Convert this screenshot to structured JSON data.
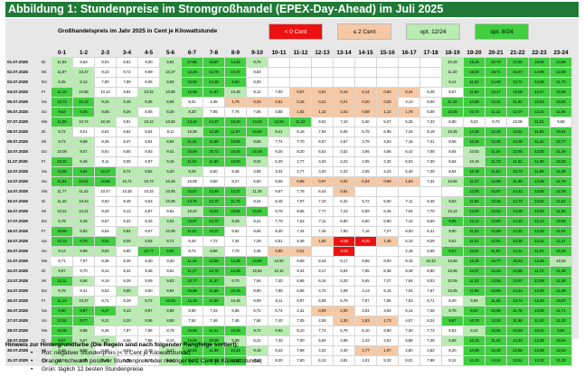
{
  "title": "Abbildung 1: Stundenpreise im Stromgroßhandel (EPEX-Day-Ahead) im Juli 2025",
  "subtitle": "Großhandelspreis im Jahr 2025 in Cent je Kilowattstunde",
  "legend": [
    {
      "label": "< 0 Cent",
      "bg": "#ee1111",
      "fg": "#ffffff"
    },
    {
      "label": "≤ 2 Cent",
      "bg": "#f6c8a4",
      "fg": "#000000"
    },
    {
      "label": "opt. 12/24",
      "bg": "#b8ecb0",
      "fg": "#000000"
    },
    {
      "label": "opt. 8/24",
      "bg": "#3fcf3f",
      "fg": "#000000"
    }
  ],
  "hours": [
    "0-1",
    "1-2",
    "2-3",
    "3-4",
    "4-5",
    "5-6",
    "6-7",
    "7-8",
    "8-9",
    "9-10",
    "10-11",
    "11-12",
    "12-13",
    "13-14",
    "14-15",
    "15-16",
    "16-17",
    "17-18",
    "18-19",
    "19-20",
    "20-21",
    "21-22",
    "22-23",
    "23-24"
  ],
  "rows": [
    {
      "date": "01.07.2025",
      "wd": "Di",
      "v": [
        "11,94",
        "9,63",
        "8,91",
        "8,81",
        "9,00",
        "9,81",
        "17,66",
        "19,87",
        "14,49",
        "9,75",
        "",
        "",
        "",
        "",
        "",
        "",
        "",
        "",
        "10,25",
        "15,29",
        "22,73",
        "17,62",
        "19,06",
        "14,96"
      ]
    },
    {
      "date": "02.07.2025",
      "wd": "Mi",
      "v": [
        "11,97",
        "10,27",
        "9,23",
        "9,72",
        "9,99",
        "10,37",
        "12,49",
        "14,78",
        "14,37",
        "9,83",
        "",
        "",
        "",
        "",
        "",
        "",
        "",
        "",
        "11,30",
        "16,02",
        "19,71",
        "16,67",
        "14,86",
        "12,93"
      ]
    },
    {
      "date": "03.07.2025",
      "wd": "Do",
      "v": [
        "8,35",
        "8,12",
        "7,90",
        "7,89",
        "8,05",
        "8,65",
        "10,56",
        "14,35",
        "9,60",
        "8,00",
        "",
        "",
        "",
        "",
        "",
        "",
        "",
        "",
        "9,14",
        "11,32",
        "14,98",
        "12,71",
        "13,98",
        "11,70"
      ]
    },
    {
      "date": "04.07.2025",
      "wd": "Fr",
      "v": [
        "11,10",
        "10,55",
        "10,13",
        "9,84",
        "10,32",
        "10,80",
        "12,96",
        "11,97",
        "10,48",
        "9,12",
        "7,00",
        "0,67",
        "0,01",
        "0,16",
        "0,14",
        "0,60",
        "0,24",
        "6,28",
        "8,87",
        "11,60",
        "13,47",
        "15,08",
        "12,67",
        "10,85"
      ]
    },
    {
      "date": "05.07.2025",
      "wd": "Sa",
      "v": [
        "10,73",
        "10,15",
        "9,34",
        "9,45",
        "9,35",
        "8,65",
        "8,31",
        "4,38",
        "1,79",
        "0,33",
        "0,01",
        "0,15",
        "0,21",
        "0,21",
        "0,20",
        "0,20",
        "4,13",
        "8,50",
        "11,10",
        "14,08",
        "13,31",
        "11,92",
        "10,83",
        "10,82"
      ]
    },
    {
      "date": "06.07.2025",
      "wd": "So",
      "v": [
        "9,62",
        "9,05",
        "8,58",
        "8,39",
        "8,05",
        "8,26",
        "8,20",
        "7,85",
        "7,76",
        "7,06",
        "3,88",
        "1,92",
        "1,32",
        "1,03",
        "0,58",
        "1,12",
        "1,76",
        "5,08",
        "10,05",
        "10,74",
        "11,12",
        "12,07",
        "12,24",
        "11,84"
      ]
    },
    {
      "date": "07.07.2025",
      "wd": "Mo",
      "v": [
        "11,08",
        "10,74",
        "10,19",
        "9,91",
        "10,12",
        "10,82",
        "13,42",
        "14,37",
        "16,20",
        "13,20",
        "12,50",
        "11,32",
        "9,02",
        "7,10",
        "5,30",
        "5,07",
        "5,25",
        "7,23",
        "8,80",
        "9,23",
        "9,73",
        "10,06",
        "11,01",
        "9,58"
      ]
    },
    {
      "date": "08.07.2025",
      "wd": "Di",
      "v": [
        "9,72",
        "9,01",
        "8,61",
        "8,64",
        "8,54",
        "9,11",
        "10,08",
        "12,36",
        "11,87",
        "10,92",
        "9,41",
        "8,18",
        "7,94",
        "6,06",
        "5,79",
        "6,98",
        "7,34",
        "8,19",
        "10,35",
        "14,25",
        "12,29",
        "12,51",
        "11,85",
        "10,81"
      ]
    },
    {
      "date": "09.07.2025",
      "wd": "Mi",
      "v": [
        "9,72",
        "8,69",
        "8,39",
        "8,47",
        "8,51",
        "8,84",
        "11,31",
        "11,56",
        "10,65",
        "8,66",
        "7,74",
        "7,70",
        "6,57",
        "4,67",
        "3,78",
        "4,63",
        "7,15",
        "7,41",
        "8,56",
        "10,36",
        "12,30",
        "12,35",
        "11,42",
        "10,77"
      ]
    },
    {
      "date": "10.07.2025",
      "wd": "Do",
      "v": [
        "10,09",
        "9,57",
        "8,91",
        "8,85",
        "8,93",
        "9,41",
        "10,69",
        "16,72",
        "16,04",
        "10,49",
        "9,26",
        "8,20",
        "6,53",
        "4,52",
        "3,95",
        "4,56",
        "6,42",
        "7,08",
        "8,64",
        "10,02",
        "11,44",
        "12,66",
        "12,92",
        "11,29"
      ]
    },
    {
      "date": "11.07.2025",
      "wd": "Fr",
      "v": [
        "10,40",
        "9,48",
        "9,11",
        "9,08",
        "8,97",
        "9,15",
        "11,04",
        "11,60",
        "15,00",
        "9,34",
        "5,20",
        "2,77",
        "3,20",
        "2,22",
        "2,05",
        "2,32",
        "6,02",
        "7,30",
        "8,64",
        "10,19",
        "11,73",
        "11,61",
        "11,36",
        "10,45"
      ]
    },
    {
      "date": "12.07.2025",
      "wd": "Sa",
      "v": [
        "10,66",
        "9,84",
        "10,27",
        "9,74",
        "9,52",
        "9,20",
        "9,25",
        "8,50",
        "5,46",
        "3,08",
        "3,44",
        "2,77",
        "3,20",
        "2,22",
        "2,05",
        "4,23",
        "5,40",
        "7,30",
        "8,64",
        "10,19",
        "11,63",
        "10,73",
        "11,86",
        "11,09"
      ]
    },
    {
      "date": "13.07.2025",
      "wd": "So",
      "v": [
        "11,54",
        "10,91",
        "10,84",
        "10,71",
        "10,74",
        "10,46",
        "10,09",
        "9,50",
        "8,27",
        "6,60",
        "5,56",
        "0,98",
        "0,07",
        "0,02",
        "0,34",
        "0,59",
        "1,93",
        "7,34",
        "10,56",
        "11,37",
        "12,08",
        "11,99",
        "13,06",
        "11,76"
      ]
    },
    {
      "date": "14.07.2025",
      "wd": "Mo",
      "v": [
        "11,77",
        "11,43",
        "10,47",
        "10,38",
        "10,32",
        "10,65",
        "12,57",
        "13,49",
        "13,27",
        "11,35",
        "9,57",
        "7,76",
        "6,43",
        "0,61",
        "",
        "",
        "",
        "",
        "",
        "12,00",
        "12,97",
        "14,42",
        "13,65",
        "12,38"
      ]
    },
    {
      "date": "15.07.2025",
      "wd": "Di",
      "v": [
        "11,40",
        "10,44",
        "9,62",
        "9,49",
        "9,53",
        "10,06",
        "13,75",
        "13,70",
        "11,75",
        "9,24",
        "8,46",
        "7,97",
        "7,10",
        "6,42",
        "5,72",
        "5,50",
        "7,11",
        "8,46",
        "9,83",
        "11,65",
        "13,48",
        "14,73",
        "13,64",
        "11,52"
      ]
    },
    {
      "date": "16.07.2025",
      "wd": "Mi",
      "v": [
        "10,31",
        "10,21",
        "9,29",
        "9,13",
        "8,87",
        "9,61",
        "10,20",
        "10,91",
        "10,56",
        "10,81",
        "9,79",
        "8,56",
        "7,77",
        "7,23",
        "5,69",
        "6,26",
        "7,04",
        "7,70",
        "10,12",
        "12,00",
        "13,62",
        "14,06",
        "12,50",
        "11,50"
      ]
    },
    {
      "date": "17.07.2025",
      "wd": "Do",
      "v": [
        "9,78",
        "9,46",
        "8,67",
        "8,34",
        "8,43",
        "9,04",
        "10,87",
        "13,70",
        "9,49",
        "8,41",
        "7,79",
        "7,52",
        "7,11",
        "6,80",
        "6,50",
        "6,50",
        "7,10",
        "8,50",
        "9,95",
        "12,12",
        "13,60",
        "14,46",
        "12,13",
        "10,69"
      ]
    },
    {
      "date": "18.07.2025",
      "wd": "Fr",
      "v": [
        "10,68",
        "9,92",
        "9,54",
        "9,64",
        "9,07",
        "10,08",
        "11,81",
        "10,37",
        "9,62",
        "9,55",
        "8,30",
        "7,44",
        "7,26",
        "7,60",
        "7,16",
        "7,27",
        "8,00",
        "8,41",
        "9,80",
        "11,22",
        "12,89",
        "14,21",
        "12,56",
        "11,04"
      ]
    },
    {
      "date": "19.07.2025",
      "wd": "Sa",
      "v": [
        "10,13",
        "9,78",
        "9,61",
        "9,09",
        "9,04",
        "8,71",
        "8,40",
        "7,72",
        "7,34",
        "7,29",
        "6,51",
        "5,36",
        "1,60",
        "-0,08",
        "-0,01",
        "1,45",
        "5,10",
        "8,29",
        "9,61",
        "11,01",
        "12,91",
        "13,38",
        "12,42",
        "11,47"
      ]
    },
    {
      "date": "20.07.2025",
      "wd": "So",
      "v": [
        "9,13",
        "8,89",
        "8,83",
        "8,80",
        "10,77",
        "9,83",
        "8,72",
        "8,86",
        "7,79",
        "4,46",
        "0,90",
        "0,21",
        "",
        "-0,01",
        "",
        "",
        "2,18",
        "6,69",
        "9,27",
        "10,51",
        "11,82",
        "12,11",
        "11,23",
        "10,15"
      ]
    },
    {
      "date": "21.07.2025",
      "wd": "Mo",
      "v": [
        "8,71",
        "7,97",
        "8,35",
        "8,35",
        "8,30",
        "9,20",
        "11,44",
        "12,86",
        "12,26",
        "10,90",
        "10,60",
        "8,89",
        "8,43",
        "8,17",
        "8,66",
        "8,00",
        "9,15",
        "10,43",
        "10,56",
        "12,20",
        "16,77",
        "16,64",
        "12,46",
        "10,52"
      ]
    },
    {
      "date": "22.07.2025",
      "wd": "Di",
      "v": [
        "9,97",
        "9,70",
        "9,41",
        "9,44",
        "9,35",
        "9,61",
        "11,17",
        "14,70",
        "12,48",
        "10,62",
        "10,10",
        "9,34",
        "9,17",
        "8,94",
        "7,95",
        "8,38",
        "9,49",
        "8,80",
        "10,96",
        "12,07",
        "14,02",
        "13,98",
        "11,72",
        "11,30"
      ]
    },
    {
      "date": "23.07.2025",
      "wd": "Mi",
      "v": [
        "10,11",
        "9,56",
        "9,19",
        "9,29",
        "9,09",
        "9,63",
        "10,77",
        "11,37",
        "9,70",
        "7,94",
        "7,40",
        "6,86",
        "6,16",
        "5,20",
        "5,65",
        "7,27",
        "7,64",
        "8,03",
        "10,05",
        "11,33",
        "13,06",
        "13,97",
        "12,89",
        "11,38"
      ]
    },
    {
      "date": "24.07.2025",
      "wd": "Do",
      "v": [
        "9,78",
        "9,41",
        "9,53",
        "9,60",
        "9,60",
        "9,84",
        "10,88",
        "11,65",
        "10,16",
        "8,90",
        "7,85",
        "6,86",
        "4,70",
        "4,08",
        "4,13",
        "5,16",
        "7,04",
        "7,67",
        "10,05",
        "11,55",
        "13,69",
        "14,44",
        "13,90",
        "11,29"
      ]
    },
    {
      "date": "25.07.2025",
      "wd": "Fr",
      "v": [
        "11,13",
        "10,37",
        "9,71",
        "9,29",
        "9,72",
        "10,53",
        "12,15",
        "11,95",
        "10,45",
        "9,09",
        "8,11",
        "6,97",
        "6,08",
        "5,78",
        "7,67",
        "7,85",
        "7,93",
        "8,71",
        "8,40",
        "9,90",
        "11,45",
        "13,74",
        "12,40",
        "10,67"
      ]
    },
    {
      "date": "26.07.2025",
      "wd": "Sa",
      "v": [
        "9,90",
        "9,87",
        "9,37",
        "9,13",
        "8,97",
        "8,88",
        "8,58",
        "7,33",
        "6,86",
        "6,72",
        "5,74",
        "2,31",
        "0,08",
        "2,00",
        "3,04",
        "3,94",
        "6,14",
        "7,46",
        "8,78",
        "9,53",
        "10,96",
        "11,76",
        "13,55",
        "11,71"
      ]
    },
    {
      "date": "27.07.2025",
      "wd": "So",
      "v": [
        "10,52",
        "9,77",
        "9,21",
        "9,20",
        "8,96",
        "8,68",
        "7,54",
        "7,46",
        "7,46",
        "7,56",
        "7,40",
        "7,05",
        "4,59",
        "1,30",
        "1,83",
        "1,73",
        "4,57",
        "8,24",
        "9,67",
        "10,76",
        "12,30",
        "11,96",
        "11,40",
        "11,20"
      ]
    },
    {
      "date": "28.07.2025",
      "wd": "Mo",
      "v": [
        "10,00",
        "8,88",
        "8,35",
        "7,97",
        "7,86",
        "8,76",
        "10,59",
        "11,31",
        "10,36",
        "9,72",
        "8,92",
        "8,10",
        "7,74",
        "5,76",
        "5,10",
        "6,90",
        "7,40",
        "7,73",
        "8,53",
        "9,10",
        "10,05",
        "10,59",
        "10,31",
        "9,84"
      ]
    },
    {
      "date": "29.07.2025",
      "wd": "Di",
      "v": [
        "9,67",
        "8,67",
        "8,70",
        "8,09",
        "7,86",
        "8,10",
        "10,66",
        "10,98",
        "9,38",
        "8,31",
        "7,40",
        "7,00",
        "5,94",
        "2,98",
        "2,43",
        "2,61",
        "5,88",
        "7,26",
        "8,66",
        "10,15",
        "11,43",
        "12,34",
        "12,38",
        "10,94"
      ]
    },
    {
      "date": "30.07.2025",
      "wd": "Mi",
      "v": [
        "9,49",
        "9,09",
        "8,69",
        "8,32",
        "8,47",
        "9,47",
        "10,84",
        "11,99",
        "10,42",
        "9,18",
        "8,43",
        "7,88",
        "4,33",
        "2,40",
        "1,77",
        "1,97",
        "2,80",
        "4,82",
        "8,20",
        "10,08",
        "13,30",
        "12,88",
        "12,38",
        "12,54"
      ]
    },
    {
      "date": "31.07.2025",
      "wd": "Do",
      "v": [
        "10,04",
        "9,65",
        "9,45",
        "9,08",
        "9,05",
        "9,84",
        "11,46",
        "11,60",
        "10,91",
        "9,11",
        "8,20",
        "7,60",
        "6,12",
        "4,81",
        "4,01",
        "5,32",
        "8,01",
        "7,98",
        "9,12",
        "11,33",
        "14,34",
        "13,51",
        "13,33",
        "11,33"
      ]
    }
  ],
  "notes": {
    "heading": "Hinweis zur Hintergrundfarbe (Die Regeln sind nach folgender Rangfolge sortiert):",
    "items": [
      "Rot: negativer Stundenpreis (< 0 Cent je Kilowattstunde)",
      "Orange: schwach positiver Stundenpreis oder niedriger (≤ 2 Cent je Kilowattstunde)",
      "Grün: täglich 12 besten Stundenpreise"
    ]
  }
}
